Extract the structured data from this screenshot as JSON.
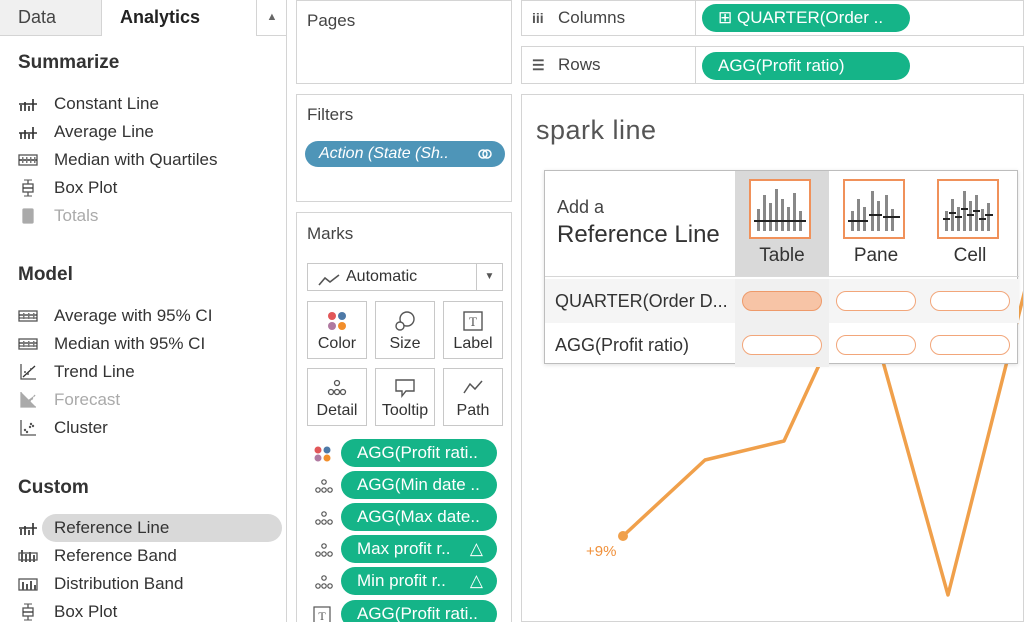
{
  "left_pane": {
    "tabs": [
      {
        "label": "Data",
        "active": false
      },
      {
        "label": "Analytics",
        "active": true
      }
    ],
    "sections": [
      {
        "title": "Summarize",
        "items": [
          {
            "label": "Constant Line",
            "icon": "constant-line-icon",
            "enabled": true
          },
          {
            "label": "Average Line",
            "icon": "average-line-icon",
            "enabled": true
          },
          {
            "label": "Median with Quartiles",
            "icon": "median-quartiles-icon",
            "enabled": true
          },
          {
            "label": "Box Plot",
            "icon": "box-plot-icon",
            "enabled": true
          },
          {
            "label": "Totals",
            "icon": "totals-icon",
            "enabled": false
          }
        ]
      },
      {
        "title": "Model",
        "items": [
          {
            "label": "Average with 95% CI",
            "icon": "average-ci-icon",
            "enabled": true
          },
          {
            "label": "Median with 95% CI",
            "icon": "median-ci-icon",
            "enabled": true
          },
          {
            "label": "Trend Line",
            "icon": "trend-line-icon",
            "enabled": true
          },
          {
            "label": "Forecast",
            "icon": "forecast-icon",
            "enabled": false
          },
          {
            "label": "Cluster",
            "icon": "cluster-icon",
            "enabled": true
          }
        ]
      },
      {
        "title": "Custom",
        "items": [
          {
            "label": "Reference Line",
            "icon": "reference-line-icon",
            "enabled": true,
            "selected": true
          },
          {
            "label": "Reference Band",
            "icon": "reference-band-icon",
            "enabled": true
          },
          {
            "label": "Distribution Band",
            "icon": "distribution-band-icon",
            "enabled": true
          },
          {
            "label": "Box Plot",
            "icon": "box-plot-icon",
            "enabled": true
          }
        ]
      }
    ]
  },
  "cards": {
    "pages_title": "Pages",
    "filters_title": "Filters",
    "filter_pill": "Action (State (Sh..",
    "marks_title": "Marks",
    "mark_type": "Automatic",
    "mark_buttons": [
      {
        "label": "Color",
        "icon": "color-icon"
      },
      {
        "label": "Size",
        "icon": "size-icon"
      },
      {
        "label": "Label",
        "icon": "label-icon"
      },
      {
        "label": "Detail",
        "icon": "detail-icon"
      },
      {
        "label": "Tooltip",
        "icon": "tooltip-icon"
      },
      {
        "label": "Path",
        "icon": "path-icon"
      }
    ],
    "mark_fields": [
      {
        "label": "AGG(Profit rati..",
        "icon": "color-icon",
        "delta": ""
      },
      {
        "label": "AGG(Min date ..",
        "icon": "detail-icon",
        "delta": ""
      },
      {
        "label": "AGG(Max date..",
        "icon": "detail-icon",
        "delta": ""
      },
      {
        "label": "Max profit r..",
        "icon": "detail-icon",
        "delta": "△"
      },
      {
        "label": "Min profit r..",
        "icon": "detail-icon",
        "delta": "△"
      },
      {
        "label": "AGG(Profit rati..",
        "icon": "label-icon",
        "delta": ""
      }
    ]
  },
  "shelves": {
    "columns_label": "Columns",
    "columns_pill": "⊞ QUARTER(Order ..",
    "rows_label": "Rows",
    "rows_pill": "AGG(Profit ratio)"
  },
  "canvas": {
    "sheet_title": "spark line",
    "point_label": "+9%",
    "line_color": "#f0a04b"
  },
  "ref_panel": {
    "add_text": "Add a",
    "title": "Reference Line",
    "scopes": [
      {
        "label": "Table",
        "selected": true
      },
      {
        "label": "Pane",
        "selected": false
      },
      {
        "label": "Cell",
        "selected": false
      }
    ],
    "rows": [
      {
        "label": "QUARTER(Order D...",
        "active_slot": "Table"
      },
      {
        "label": "AGG(Profit ratio)",
        "active_slot": ""
      }
    ]
  },
  "colors": {
    "pill_green": "#15b488",
    "filter_blue": "#4e95b8",
    "accent_orange": "#f0915a"
  }
}
